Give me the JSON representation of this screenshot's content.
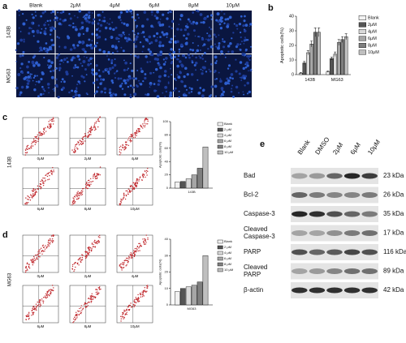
{
  "a": {
    "letter": "a",
    "columns": [
      "Blank",
      "2μM",
      "4μM",
      "6μM",
      "8μM",
      "10μM"
    ],
    "rows": [
      "143B",
      "MG63"
    ]
  },
  "b": {
    "letter": "b",
    "chart": {
      "type": "bar",
      "y_label": "Apoptotic cells(%)",
      "categories": [
        "143B",
        "MG63"
      ],
      "ylim": [
        0,
        40
      ],
      "yticks": [
        0,
        10,
        20,
        30,
        40
      ],
      "series": [
        {
          "name": "Blank",
          "color": "#f2f2f2",
          "values": [
            1,
            2
          ],
          "errors": [
            0.5,
            0.5
          ]
        },
        {
          "name": "2μM",
          "color": "#555555",
          "values": [
            8,
            11
          ],
          "errors": [
            1,
            1
          ]
        },
        {
          "name": "4μM",
          "color": "#d9d9d9",
          "values": [
            15,
            14
          ],
          "errors": [
            1.5,
            1.5
          ]
        },
        {
          "name": "6μM",
          "color": "#a6a6a6",
          "values": [
            21,
            22
          ],
          "errors": [
            2,
            2
          ]
        },
        {
          "name": "8μM",
          "color": "#7f7f7f",
          "values": [
            29,
            24
          ],
          "errors": [
            3,
            2
          ]
        },
        {
          "name": "10μM",
          "color": "#bfbfbf",
          "values": [
            29,
            26
          ],
          "errors": [
            3,
            2
          ]
        }
      ]
    }
  },
  "c": {
    "letter": "c",
    "row_label": "143B",
    "plot_labels": [
      "0μM",
      "2μM",
      "4μM",
      "6μM",
      "8μM",
      "10μM"
    ],
    "chart": {
      "type": "bar",
      "y_label": "Apoptotic cells(%)",
      "categories": [
        "143B"
      ],
      "ylim": [
        0,
        100
      ],
      "yticks": [
        0,
        20,
        40,
        60,
        80,
        100
      ],
      "series": [
        {
          "name": "Blank",
          "color": "#f2f2f2",
          "values": [
            9
          ]
        },
        {
          "name": "2 μM",
          "color": "#555555",
          "values": [
            10
          ]
        },
        {
          "name": "4 μM",
          "color": "#d9d9d9",
          "values": [
            14
          ]
        },
        {
          "name": "6 μM",
          "color": "#a6a6a6",
          "values": [
            20
          ]
        },
        {
          "name": "8 μM",
          "color": "#7f7f7f",
          "values": [
            30
          ]
        },
        {
          "name": "10 μM",
          "color": "#bfbfbf",
          "values": [
            62
          ]
        }
      ]
    }
  },
  "d": {
    "letter": "d",
    "row_label": "MG63",
    "plot_labels": [
      "0μM",
      "2μM",
      "4μM",
      "6μM",
      "8μM",
      "10μM"
    ],
    "chart": {
      "type": "bar",
      "y_label": "Apoptotic cells(%)",
      "categories": [
        "MG63"
      ],
      "ylim": [
        0,
        40
      ],
      "yticks": [
        0,
        10,
        20,
        30,
        40
      ],
      "series": [
        {
          "name": "Blank",
          "color": "#f2f2f2",
          "values": [
            8
          ]
        },
        {
          "name": "2 μM",
          "color": "#555555",
          "values": [
            10
          ]
        },
        {
          "name": "4 μM",
          "color": "#d9d9d9",
          "values": [
            11
          ]
        },
        {
          "name": "6 μM",
          "color": "#a6a6a6",
          "values": [
            12
          ]
        },
        {
          "name": "8 μM",
          "color": "#7f7f7f",
          "values": [
            14
          ]
        },
        {
          "name": "10 μM",
          "color": "#bfbfbf",
          "values": [
            30
          ]
        }
      ]
    }
  },
  "e": {
    "letter": "e",
    "lanes": [
      "Blank",
      "DMSO",
      "2μM",
      "6μM",
      "10μM"
    ],
    "proteins": [
      {
        "name": [
          "Bad"
        ],
        "size": "23 kDa"
      },
      {
        "name": [
          "Bcl-2"
        ],
        "size": "26 kDa"
      },
      {
        "name": [
          "Caspase-3"
        ],
        "size": "35 kDa"
      },
      {
        "name": [
          "Cleaved",
          "Caspase-3"
        ],
        "size": "17 kDa"
      },
      {
        "name": [
          "PARP"
        ],
        "size": "116 kDa"
      },
      {
        "name": [
          "Cleaved",
          "PARP"
        ],
        "size": "89 kDa"
      },
      {
        "name": [
          "β-actin"
        ],
        "size": "42 kDa"
      }
    ]
  }
}
